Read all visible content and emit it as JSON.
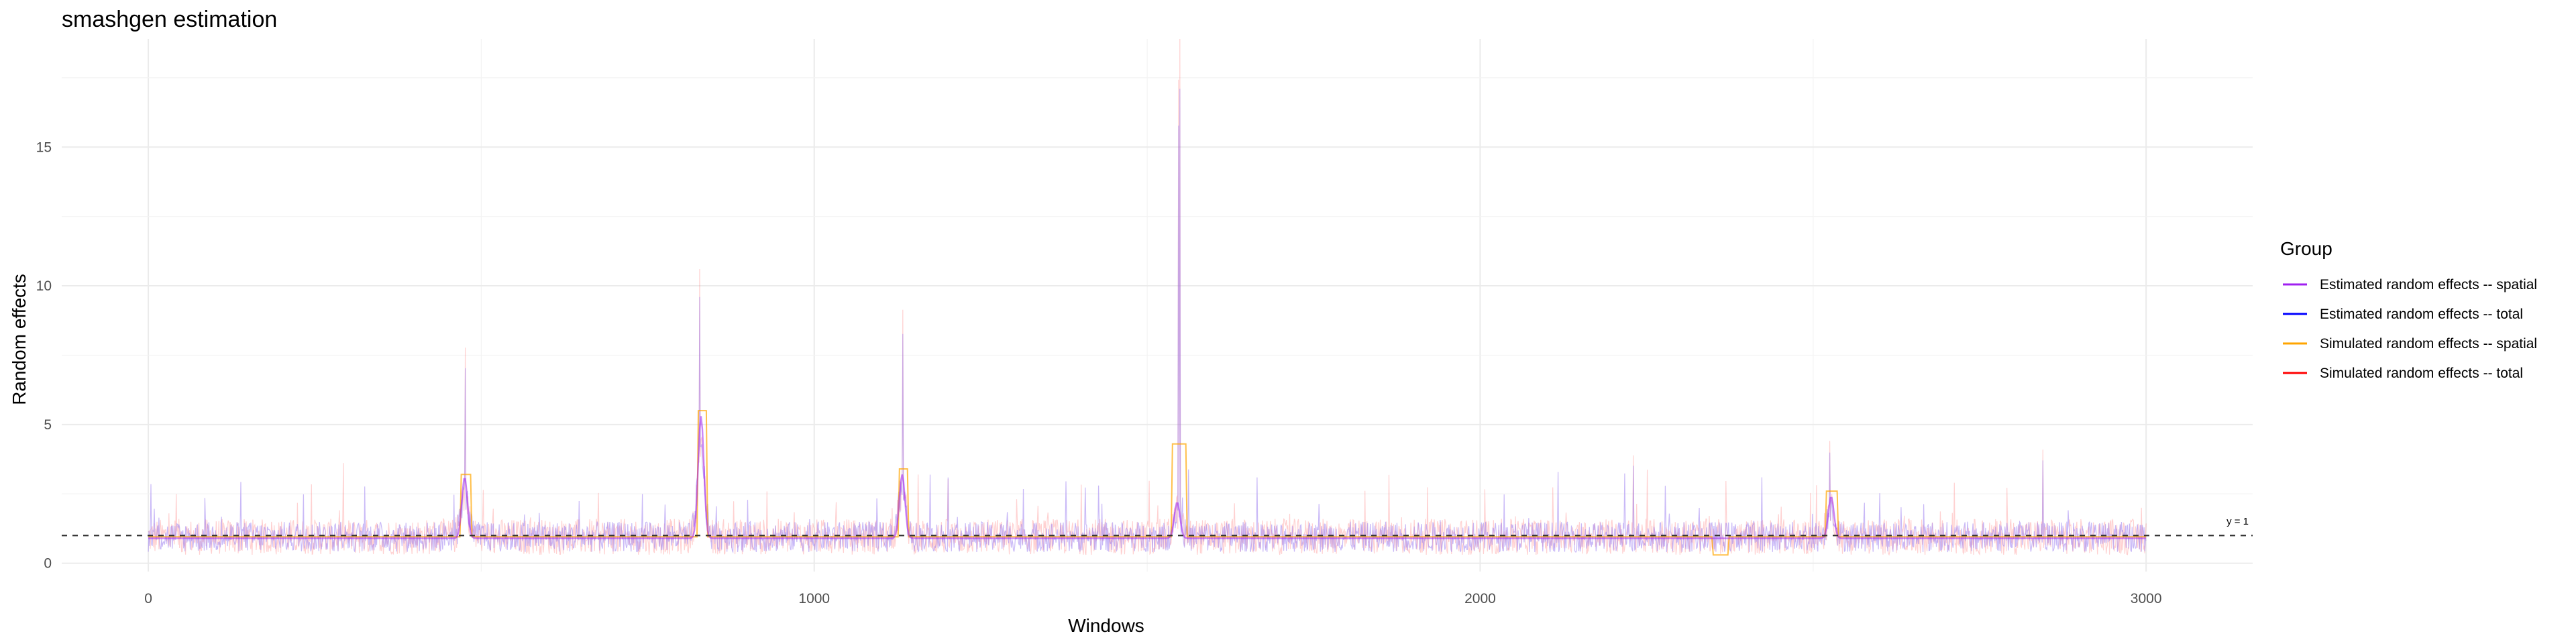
{
  "chart_data": {
    "type": "line",
    "title": "smashgen estimation",
    "xlabel": "Windows",
    "ylabel": "Random effects",
    "xlim": [
      -130,
      3160
    ],
    "ylim": [
      -0.3,
      18.9
    ],
    "x_ticks": [
      0,
      1000,
      2000,
      3000
    ],
    "y_ticks": [
      0,
      5,
      10,
      15
    ],
    "grid": true,
    "legend": {
      "title": "Group",
      "position": "right"
    },
    "reference_line": {
      "y": 1,
      "label": "y = 1",
      "style": "dashed"
    },
    "series": [
      {
        "name": "Estimated random effects -- spatial",
        "color": "#A020F0",
        "kind": "smooth",
        "baseline": 0.9,
        "peaks": [
          {
            "x": 475,
            "height": 3.2
          },
          {
            "x": 830,
            "height": 5.4
          },
          {
            "x": 1132,
            "height": 3.3
          },
          {
            "x": 1545,
            "height": 2.3
          },
          {
            "x": 2527,
            "height": 2.5
          }
        ]
      },
      {
        "name": "Estimated random effects -- total",
        "color": "#0000FF",
        "kind": "noisy",
        "baseline": 1.0
      },
      {
        "name": "Simulated random effects -- spatial",
        "color": "#FFA500",
        "kind": "step",
        "baseline": 0.95,
        "segments": [
          {
            "x0": 470,
            "x1": 485,
            "value": 3.2
          },
          {
            "x0": 825,
            "x1": 838,
            "value": 5.5
          },
          {
            "x0": 1127,
            "x1": 1140,
            "value": 3.4
          },
          {
            "x0": 1537,
            "x1": 1558,
            "value": 4.3
          },
          {
            "x0": 2350,
            "x1": 2372,
            "value": 0.3
          },
          {
            "x0": 2520,
            "x1": 2537,
            "value": 2.6
          }
        ]
      },
      {
        "name": "Simulated random effects -- total",
        "color": "#FF0000",
        "kind": "noisy",
        "baseline": 1.0
      }
    ],
    "spikes": [
      {
        "x": 476,
        "value": 7.4
      },
      {
        "x": 828,
        "value": 10.1
      },
      {
        "x": 1133,
        "value": 8.7
      },
      {
        "x": 1547,
        "value": 16.6
      },
      {
        "x": 1549,
        "value": 18.0
      },
      {
        "x": 2525,
        "value": 4.2
      },
      {
        "x": 2230,
        "value": 3.7
      },
      {
        "x": 2845,
        "value": 3.9
      }
    ]
  }
}
